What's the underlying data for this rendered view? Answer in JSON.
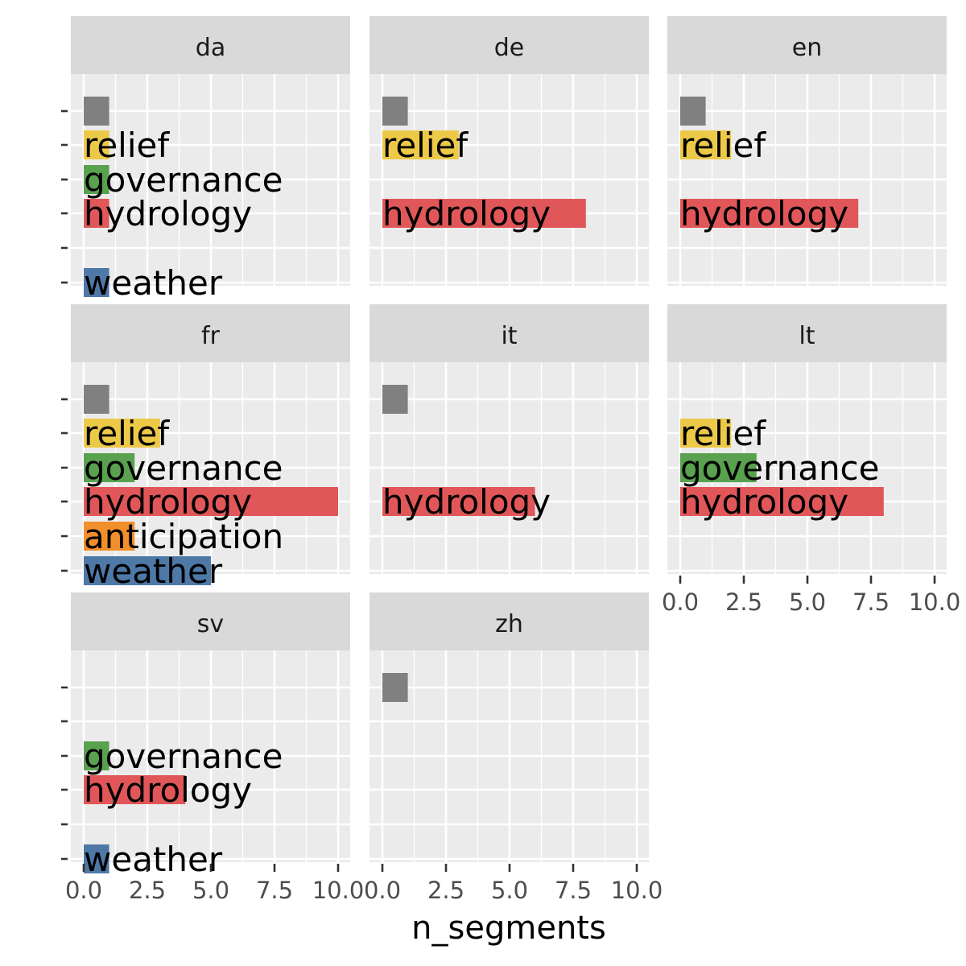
{
  "chart_data": {
    "type": "bar",
    "orientation": "horizontal",
    "facet_by": "language",
    "xlabel": "n_segments",
    "ylabel": "",
    "xlim": [
      0,
      10.5
    ],
    "x_ticks": [
      "0.0",
      "2.5",
      "5.0",
      "7.5",
      "10.0"
    ],
    "x_tick_values": [
      0,
      2.5,
      5,
      7.5,
      10
    ],
    "grid": true,
    "legend": "none",
    "categories": [
      "",
      "relief",
      "governance",
      "hydrology",
      "anticipation",
      "weather"
    ],
    "colors": {
      "": "#808080",
      "relief": "#EDC948",
      "governance": "#59A14F",
      "hydrology": "#E15759",
      "anticipation": "#F28E2B",
      "weather": "#4E79A7"
    },
    "panels": [
      {
        "label": "da",
        "y_ticks": [
          "",
          "relief",
          "governance",
          "hydrology",
          "anticipation",
          "weather"
        ],
        "bars": [
          {
            "category": "",
            "value": 1
          },
          {
            "category": "relief",
            "value": 1
          },
          {
            "category": "governance",
            "value": 1
          },
          {
            "category": "hydrology",
            "value": 1
          },
          {
            "category": "weather",
            "value": 1
          }
        ]
      },
      {
        "label": "de",
        "y_ticks": [],
        "bars": [
          {
            "category": "",
            "value": 1
          },
          {
            "category": "relief",
            "value": 3
          },
          {
            "category": "hydrology",
            "value": 8
          }
        ]
      },
      {
        "label": "en",
        "y_ticks": [],
        "bars": [
          {
            "category": "",
            "value": 1
          },
          {
            "category": "relief",
            "value": 2
          },
          {
            "category": "hydrology",
            "value": 7
          }
        ]
      },
      {
        "label": "fr",
        "y_ticks": [
          "",
          "relief",
          "governance",
          "hydrology",
          "anticipation",
          "weather"
        ],
        "bars": [
          {
            "category": "",
            "value": 1
          },
          {
            "category": "relief",
            "value": 3
          },
          {
            "category": "governance",
            "value": 2
          },
          {
            "category": "hydrology",
            "value": 10
          },
          {
            "category": "anticipation",
            "value": 2
          },
          {
            "category": "weather",
            "value": 5
          }
        ]
      },
      {
        "label": "it",
        "y_ticks": [],
        "bars": [
          {
            "category": "",
            "value": 1
          },
          {
            "category": "hydrology",
            "value": 6
          }
        ]
      },
      {
        "label": "lt",
        "y_ticks": [],
        "bars": [
          {
            "category": "relief",
            "value": 2
          },
          {
            "category": "governance",
            "value": 3
          },
          {
            "category": "hydrology",
            "value": 8
          }
        ]
      },
      {
        "label": "sv",
        "y_ticks": [
          "",
          "relief",
          "governance",
          "hydrology",
          "anticipation",
          "weather"
        ],
        "bars": [
          {
            "category": "governance",
            "value": 1
          },
          {
            "category": "hydrology",
            "value": 4
          },
          {
            "category": "weather",
            "value": 1
          }
        ]
      },
      {
        "label": "zh",
        "y_ticks": [],
        "bars": [
          {
            "category": "",
            "value": 1
          }
        ]
      }
    ]
  }
}
